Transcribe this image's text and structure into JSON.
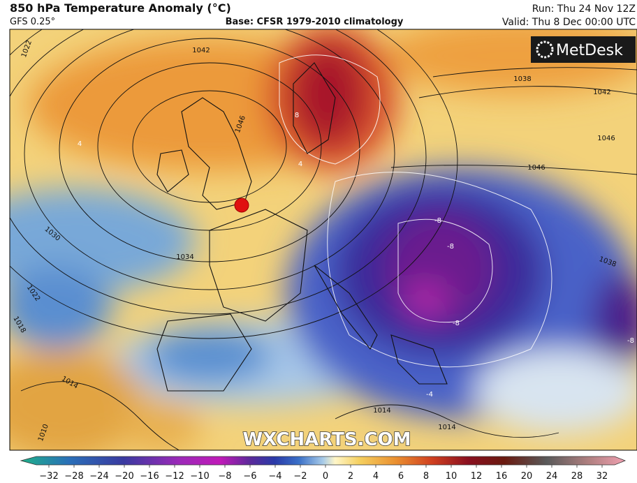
{
  "header": {
    "title": "850 hPa Temperature Anomaly (°C)",
    "model": "GFS 0.25°",
    "base": "Base: CFSR 1979-2010 climatology",
    "run": "Run: Thu 24 Nov 12Z",
    "valid": "Valid: Thu 8 Dec 00:00 UTC"
  },
  "logo": "MetDesk",
  "watermark": "WXCHARTS.COM",
  "map": {
    "isobar_labels": [
      "1042",
      "1038",
      "1042",
      "1046",
      "1046",
      "1046",
      "1034",
      "1030",
      "1022",
      "1022",
      "1018",
      "1014",
      "1014",
      "1014",
      "1010",
      "1038"
    ],
    "anomaly_labels": [
      "-8",
      "-8",
      "-8",
      "-8",
      "8",
      "4",
      "4",
      "-4"
    ]
  },
  "colorbar": {
    "ticks": [
      {
        "value": -32,
        "label": "−32"
      },
      {
        "value": -28,
        "label": "−28"
      },
      {
        "value": -24,
        "label": "−24"
      },
      {
        "value": -20,
        "label": "−20"
      },
      {
        "value": -16,
        "label": "−16"
      },
      {
        "value": -12,
        "label": "−12"
      },
      {
        "value": -10,
        "label": "−10"
      },
      {
        "value": -8,
        "label": "−8"
      },
      {
        "value": -6,
        "label": "−6"
      },
      {
        "value": -4,
        "label": "−4"
      },
      {
        "value": -2,
        "label": "−2"
      },
      0,
      2,
      4,
      6,
      8,
      10,
      12,
      16,
      20,
      24,
      28,
      32
    ]
  }
}
